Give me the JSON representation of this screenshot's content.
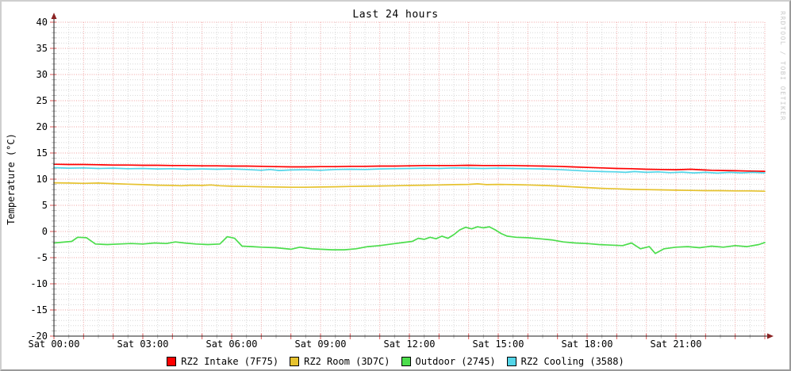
{
  "chart": {
    "title": "Last 24 hours",
    "y_axis_label": "Temperature (°C)",
    "watermark": "RRDTOOL / TOBI OETIKER",
    "colors": {
      "axis": "#1c1c1c",
      "arrow": "#8b2323",
      "grid_major": "#f0a2a2",
      "grid_minor": "#d8d8d8",
      "tick_major": "#e05a5a",
      "tick_minor": "#bdbdbd",
      "text": "#000000",
      "watermark_text": "#c9c9c9",
      "background": "#ffffff",
      "border_light": "#cfcfcf",
      "border_dark": "#9a9a9a"
    }
  },
  "chart_data": {
    "type": "line",
    "title": "Last 24 hours",
    "xlabel": "",
    "ylabel": "Temperature (°C)",
    "x_unit": "hours since Sat 00:00",
    "xlim": [
      0,
      24
    ],
    "ylim": [
      -20,
      40
    ],
    "y_major_step": 5,
    "y_minor_step": 1,
    "x_major_step": 1,
    "x_minor_step": 0.5,
    "grid": true,
    "legend_position": "bottom",
    "x_ticks": [
      {
        "h": 0,
        "label": "Sat 00:00"
      },
      {
        "h": 3,
        "label": "Sat 03:00"
      },
      {
        "h": 6,
        "label": "Sat 06:00"
      },
      {
        "h": 9,
        "label": "Sat 09:00"
      },
      {
        "h": 12,
        "label": "Sat 12:00"
      },
      {
        "h": 15,
        "label": "Sat 15:00"
      },
      {
        "h": 18,
        "label": "Sat 18:00"
      },
      {
        "h": 21,
        "label": "Sat 21:00"
      }
    ],
    "y_ticks": [
      {
        "v": 40,
        "label": "40"
      },
      {
        "v": 35,
        "label": "35"
      },
      {
        "v": 30,
        "label": "30"
      },
      {
        "v": 25,
        "label": "25"
      },
      {
        "v": 20,
        "label": "20"
      },
      {
        "v": 15,
        "label": "15"
      },
      {
        "v": 10,
        "label": "10"
      },
      {
        "v": 5,
        "label": "5"
      },
      {
        "v": 0,
        "label": "0"
      },
      {
        "v": -5,
        "label": "-5"
      },
      {
        "v": -10,
        "label": "-10"
      },
      {
        "v": -15,
        "label": "-15"
      },
      {
        "v": -20,
        "label": "-20"
      }
    ],
    "series": [
      {
        "name": "RZ2 Intake (7F75)",
        "color": "#ff0000",
        "points": [
          [
            0,
            12.85
          ],
          [
            0.5,
            12.8
          ],
          [
            1,
            12.8
          ],
          [
            1.5,
            12.75
          ],
          [
            2,
            12.7
          ],
          [
            2.5,
            12.7
          ],
          [
            3,
            12.65
          ],
          [
            3.5,
            12.65
          ],
          [
            4,
            12.6
          ],
          [
            4.5,
            12.6
          ],
          [
            5,
            12.55
          ],
          [
            5.5,
            12.55
          ],
          [
            6,
            12.5
          ],
          [
            6.5,
            12.5
          ],
          [
            7,
            12.45
          ],
          [
            7.5,
            12.4
          ],
          [
            8,
            12.35
          ],
          [
            8.5,
            12.35
          ],
          [
            9,
            12.4
          ],
          [
            9.5,
            12.4
          ],
          [
            10,
            12.45
          ],
          [
            10.5,
            12.45
          ],
          [
            11,
            12.5
          ],
          [
            11.5,
            12.5
          ],
          [
            12,
            12.55
          ],
          [
            12.5,
            12.6
          ],
          [
            13,
            12.6
          ],
          [
            13.5,
            12.6
          ],
          [
            14,
            12.65
          ],
          [
            14.5,
            12.6
          ],
          [
            15,
            12.6
          ],
          [
            15.5,
            12.6
          ],
          [
            16,
            12.55
          ],
          [
            16.5,
            12.5
          ],
          [
            17,
            12.45
          ],
          [
            17.5,
            12.35
          ],
          [
            18,
            12.25
          ],
          [
            18.5,
            12.15
          ],
          [
            19,
            12.05
          ],
          [
            19.5,
            12.0
          ],
          [
            20,
            11.9
          ],
          [
            20.5,
            11.85
          ],
          [
            21,
            11.8
          ],
          [
            21.5,
            11.9
          ],
          [
            21.8,
            11.8
          ],
          [
            22.2,
            11.7
          ],
          [
            22.6,
            11.65
          ],
          [
            23,
            11.6
          ],
          [
            23.5,
            11.55
          ],
          [
            24,
            11.5
          ]
        ]
      },
      {
        "name": "RZ2 Room (3D7C)",
        "color": "#e6c22e",
        "points": [
          [
            0,
            9.3
          ],
          [
            0.5,
            9.25
          ],
          [
            1,
            9.2
          ],
          [
            1.5,
            9.25
          ],
          [
            2,
            9.15
          ],
          [
            2.5,
            9.05
          ],
          [
            3,
            8.95
          ],
          [
            3.5,
            8.85
          ],
          [
            4,
            8.8
          ],
          [
            4.3,
            8.75
          ],
          [
            4.6,
            8.85
          ],
          [
            5,
            8.8
          ],
          [
            5.3,
            8.9
          ],
          [
            5.6,
            8.75
          ],
          [
            6,
            8.65
          ],
          [
            6.5,
            8.6
          ],
          [
            7,
            8.55
          ],
          [
            7.5,
            8.5
          ],
          [
            8,
            8.45
          ],
          [
            8.5,
            8.45
          ],
          [
            9,
            8.5
          ],
          [
            9.5,
            8.55
          ],
          [
            10,
            8.6
          ],
          [
            10.5,
            8.65
          ],
          [
            11,
            8.7
          ],
          [
            11.5,
            8.75
          ],
          [
            12,
            8.8
          ],
          [
            12.5,
            8.85
          ],
          [
            13,
            8.9
          ],
          [
            13.5,
            8.95
          ],
          [
            14,
            9.0
          ],
          [
            14.3,
            9.1
          ],
          [
            14.6,
            8.95
          ],
          [
            15,
            9.0
          ],
          [
            15.5,
            8.95
          ],
          [
            16,
            8.9
          ],
          [
            16.5,
            8.8
          ],
          [
            17,
            8.7
          ],
          [
            17.5,
            8.55
          ],
          [
            18,
            8.4
          ],
          [
            18.5,
            8.25
          ],
          [
            19,
            8.15
          ],
          [
            19.5,
            8.05
          ],
          [
            20,
            8.0
          ],
          [
            20.5,
            7.95
          ],
          [
            21,
            7.9
          ],
          [
            21.5,
            7.85
          ],
          [
            22,
            7.8
          ],
          [
            22.5,
            7.8
          ],
          [
            23,
            7.75
          ],
          [
            23.5,
            7.75
          ],
          [
            24,
            7.7
          ]
        ]
      },
      {
        "name": "Outdoor (2745)",
        "color": "#4cdd4c",
        "points": [
          [
            0,
            -2.2
          ],
          [
            0.3,
            -2.05
          ],
          [
            0.6,
            -1.9
          ],
          [
            0.8,
            -1.1
          ],
          [
            1.1,
            -1.2
          ],
          [
            1.4,
            -2.4
          ],
          [
            1.8,
            -2.5
          ],
          [
            2.2,
            -2.4
          ],
          [
            2.6,
            -2.3
          ],
          [
            3,
            -2.4
          ],
          [
            3.4,
            -2.2
          ],
          [
            3.8,
            -2.3
          ],
          [
            4.1,
            -2.0
          ],
          [
            4.4,
            -2.2
          ],
          [
            4.8,
            -2.4
          ],
          [
            5.2,
            -2.5
          ],
          [
            5.6,
            -2.4
          ],
          [
            5.85,
            -1.0
          ],
          [
            6.1,
            -1.3
          ],
          [
            6.35,
            -2.8
          ],
          [
            6.7,
            -2.9
          ],
          [
            7,
            -3.0
          ],
          [
            7.5,
            -3.1
          ],
          [
            8,
            -3.4
          ],
          [
            8.3,
            -3.0
          ],
          [
            8.7,
            -3.3
          ],
          [
            9,
            -3.4
          ],
          [
            9.4,
            -3.5
          ],
          [
            9.8,
            -3.5
          ],
          [
            10.2,
            -3.3
          ],
          [
            10.6,
            -2.9
          ],
          [
            11,
            -2.7
          ],
          [
            11.4,
            -2.4
          ],
          [
            11.8,
            -2.1
          ],
          [
            12.1,
            -1.9
          ],
          [
            12.3,
            -1.3
          ],
          [
            12.5,
            -1.5
          ],
          [
            12.7,
            -1.1
          ],
          [
            12.9,
            -1.4
          ],
          [
            13.1,
            -0.9
          ],
          [
            13.3,
            -1.3
          ],
          [
            13.5,
            -0.6
          ],
          [
            13.7,
            0.3
          ],
          [
            13.9,
            0.8
          ],
          [
            14.1,
            0.5
          ],
          [
            14.3,
            0.9
          ],
          [
            14.5,
            0.7
          ],
          [
            14.7,
            0.9
          ],
          [
            14.9,
            0.3
          ],
          [
            15.1,
            -0.4
          ],
          [
            15.3,
            -0.9
          ],
          [
            15.6,
            -1.1
          ],
          [
            16,
            -1.2
          ],
          [
            16.4,
            -1.4
          ],
          [
            16.8,
            -1.6
          ],
          [
            17.2,
            -2.0
          ],
          [
            17.6,
            -2.2
          ],
          [
            18,
            -2.3
          ],
          [
            18.4,
            -2.5
          ],
          [
            18.8,
            -2.6
          ],
          [
            19.2,
            -2.7
          ],
          [
            19.5,
            -2.2
          ],
          [
            19.8,
            -3.3
          ],
          [
            20.1,
            -2.9
          ],
          [
            20.3,
            -4.2
          ],
          [
            20.6,
            -3.3
          ],
          [
            21,
            -3.0
          ],
          [
            21.4,
            -2.9
          ],
          [
            21.8,
            -3.1
          ],
          [
            22.2,
            -2.8
          ],
          [
            22.6,
            -3.0
          ],
          [
            23,
            -2.7
          ],
          [
            23.4,
            -2.9
          ],
          [
            23.8,
            -2.5
          ],
          [
            24,
            -2.1
          ]
        ]
      },
      {
        "name": "RZ2 Cooling (3588)",
        "color": "#53d5e8",
        "points": [
          [
            0,
            12.2
          ],
          [
            0.5,
            12.1
          ],
          [
            1,
            12.15
          ],
          [
            1.5,
            12.05
          ],
          [
            2,
            12.1
          ],
          [
            2.5,
            12.0
          ],
          [
            3,
            12.05
          ],
          [
            3.5,
            11.95
          ],
          [
            4,
            12.0
          ],
          [
            4.5,
            11.9
          ],
          [
            5,
            11.95
          ],
          [
            5.5,
            11.9
          ],
          [
            6,
            11.95
          ],
          [
            6.5,
            11.85
          ],
          [
            7,
            11.7
          ],
          [
            7.3,
            11.85
          ],
          [
            7.6,
            11.65
          ],
          [
            8,
            11.75
          ],
          [
            8.5,
            11.8
          ],
          [
            9,
            11.7
          ],
          [
            9.5,
            11.85
          ],
          [
            10,
            11.9
          ],
          [
            10.5,
            11.85
          ],
          [
            11,
            11.95
          ],
          [
            11.5,
            12.0
          ],
          [
            12,
            12.05
          ],
          [
            12.5,
            12.1
          ],
          [
            13,
            12.05
          ],
          [
            13.5,
            12.15
          ],
          [
            14,
            12.1
          ],
          [
            14.5,
            12.05
          ],
          [
            15,
            12.1
          ],
          [
            15.5,
            12.05
          ],
          [
            16,
            12.0
          ],
          [
            16.5,
            11.95
          ],
          [
            17,
            11.85
          ],
          [
            17.5,
            11.7
          ],
          [
            18,
            11.55
          ],
          [
            18.5,
            11.45
          ],
          [
            19,
            11.4
          ],
          [
            19.3,
            11.3
          ],
          [
            19.6,
            11.45
          ],
          [
            20,
            11.3
          ],
          [
            20.4,
            11.4
          ],
          [
            20.8,
            11.25
          ],
          [
            21.2,
            11.35
          ],
          [
            21.6,
            11.2
          ],
          [
            22,
            11.3
          ],
          [
            22.4,
            11.15
          ],
          [
            22.8,
            11.3
          ],
          [
            23.2,
            11.2
          ],
          [
            23.6,
            11.3
          ],
          [
            24,
            11.2
          ]
        ]
      }
    ]
  }
}
